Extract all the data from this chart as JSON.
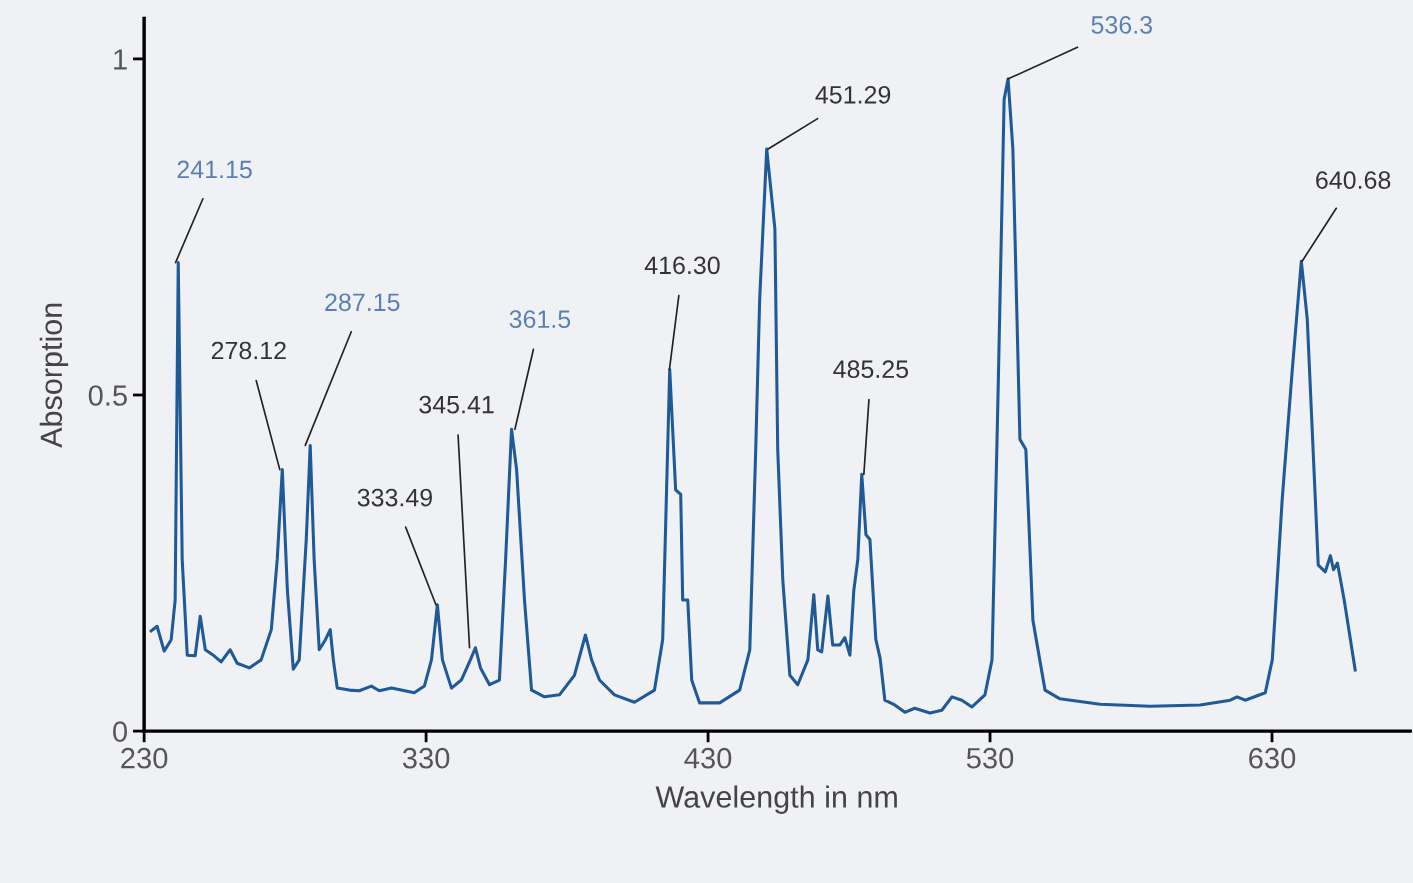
{
  "chart_data": {
    "type": "line",
    "xlabel": "Wavelength in nm",
    "ylabel": "Absorption",
    "xlim": [
      230,
      679
    ],
    "ylim": [
      0,
      1.06
    ],
    "xticks": [
      230,
      330,
      430,
      530,
      630
    ],
    "yticks": [
      0,
      0.5,
      1
    ],
    "grid": false,
    "marker": "none",
    "line_style": "solid",
    "series": [
      {
        "color": "#1f5a96",
        "x": [
          232.5,
          234.6,
          237.1,
          239.6,
          241,
          242.1,
          243.5,
          245.3,
          248.1,
          249.9,
          251.7,
          254.8,
          257.3,
          260.5,
          263,
          267.3,
          271.5,
          275.1,
          277.2,
          279,
          280.8,
          282.9,
          285,
          287.5,
          288.9,
          290.3,
          292.1,
          294.3,
          296,
          297.1,
          298.5,
          302.8,
          306.3,
          310.6,
          313.4,
          317.7,
          321.2,
          325.8,
          329.4,
          331.9,
          334,
          335.8,
          339,
          342.5,
          345.7,
          347.5,
          349.3,
          352.5,
          356,
          358.2,
          360.3,
          362.1,
          364.9,
          367.4,
          372,
          377.3,
          382.6,
          386.5,
          388.7,
          391.5,
          396.8,
          403.9,
          411,
          413.9,
          416.4,
          418.5,
          420.3,
          421,
          422.8,
          424.2,
          427,
          434.1,
          441.2,
          444.8,
          446.9,
          448.3,
          450.8,
          453.7,
          454.7,
          456.5,
          459,
          461.8,
          465.4,
          467.5,
          468.9,
          470.3,
          472.5,
          474.2,
          476.7,
          478.5,
          480.3,
          481.7,
          483.1,
          484.5,
          486,
          487.4,
          489.5,
          491,
          492.7,
          496.2,
          499.8,
          503.3,
          508.7,
          512.9,
          516.5,
          520,
          523.6,
          528.2,
          530.7,
          532.8,
          535,
          536.4,
          538.1,
          540.6,
          542.7,
          545.2,
          549.5,
          554.8,
          569,
          586.8,
          604.5,
          615.2,
          617.6,
          620.5,
          627.6,
          630.1,
          633.6,
          637.2,
          640.4,
          642.5,
          646.4,
          648.9,
          650.7,
          651.8,
          653.2,
          655.6,
          659.5
        ],
        "values": [
          0.149,
          0.156,
          0.119,
          0.136,
          0.195,
          0.697,
          0.255,
          0.113,
          0.112,
          0.171,
          0.121,
          0.112,
          0.103,
          0.121,
          0.101,
          0.094,
          0.106,
          0.151,
          0.255,
          0.389,
          0.21,
          0.092,
          0.106,
          0.285,
          0.425,
          0.255,
          0.121,
          0.136,
          0.151,
          0.106,
          0.064,
          0.061,
          0.06,
          0.067,
          0.06,
          0.064,
          0.061,
          0.057,
          0.067,
          0.106,
          0.188,
          0.106,
          0.064,
          0.076,
          0.106,
          0.124,
          0.094,
          0.069,
          0.076,
          0.255,
          0.449,
          0.389,
          0.195,
          0.061,
          0.051,
          0.054,
          0.083,
          0.143,
          0.106,
          0.076,
          0.054,
          0.043,
          0.061,
          0.136,
          0.538,
          0.359,
          0.352,
          0.195,
          0.195,
          0.076,
          0.042,
          0.042,
          0.061,
          0.121,
          0.419,
          0.642,
          0.866,
          0.747,
          0.419,
          0.225,
          0.083,
          0.069,
          0.106,
          0.203,
          0.121,
          0.118,
          0.201,
          0.128,
          0.128,
          0.139,
          0.113,
          0.21,
          0.255,
          0.382,
          0.292,
          0.285,
          0.136,
          0.109,
          0.046,
          0.039,
          0.028,
          0.034,
          0.027,
          0.031,
          0.051,
          0.046,
          0.036,
          0.054,
          0.106,
          0.493,
          0.94,
          0.97,
          0.866,
          0.434,
          0.419,
          0.165,
          0.061,
          0.048,
          0.04,
          0.037,
          0.039,
          0.046,
          0.051,
          0.046,
          0.057,
          0.106,
          0.344,
          0.538,
          0.699,
          0.613,
          0.247,
          0.237,
          0.261,
          0.24,
          0.25,
          0.195,
          0.091
        ]
      }
    ],
    "annotations": [
      {
        "text": "241.15",
        "x": 241.15,
        "y": 0.697
      },
      {
        "text": "278.12",
        "x": 278.12,
        "y": 0.389
      },
      {
        "text": "287.15",
        "x": 287.15,
        "y": 0.425
      },
      {
        "text": "333.49",
        "x": 333.49,
        "y": 0.188
      },
      {
        "text": "345.41",
        "x": 345.41,
        "y": 0.124
      },
      {
        "text": "361.5",
        "x": 361.5,
        "y": 0.449
      },
      {
        "text": "416.30",
        "x": 416.3,
        "y": 0.538
      },
      {
        "text": "451.29",
        "x": 451.29,
        "y": 0.866
      },
      {
        "text": "485.25",
        "x": 485.25,
        "y": 0.382
      },
      {
        "text": "536.3",
        "x": 536.3,
        "y": 0.97
      },
      {
        "text": "640.68",
        "x": 640.68,
        "y": 0.699
      }
    ]
  }
}
